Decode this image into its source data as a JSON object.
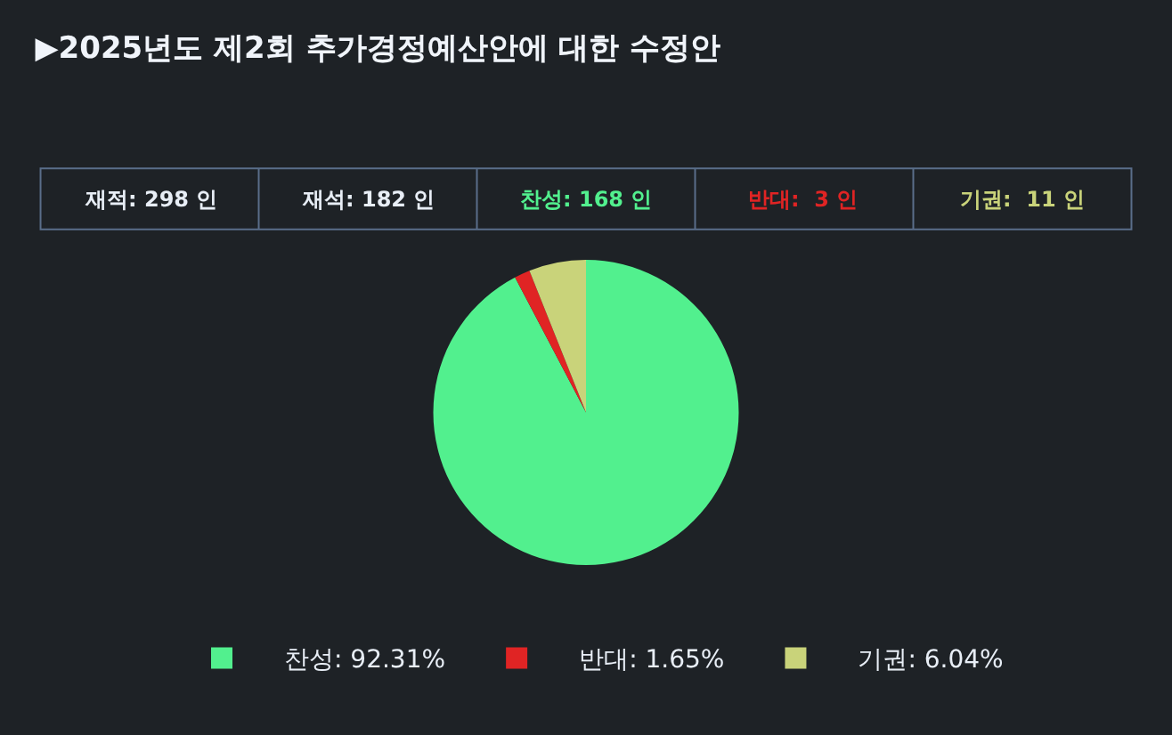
{
  "chart_data": {
    "type": "pie",
    "title": "▶2025년도 제2회 추가경정예산안에 대한 수정안",
    "annotations": [
      "재적: 298 인",
      "재석: 182 인",
      "찬성: 168 인",
      "반대:  3 인",
      "기권:  11 인"
    ],
    "categories": [
      "찬성: 92.31%",
      "반대: 1.65%",
      "기권: 6.04%"
    ],
    "values": [
      92.31,
      1.65,
      6.04
    ],
    "colors": [
      "#52f08e",
      "#e02424",
      "#c9d37a"
    ],
    "legend": "bottom"
  }
}
